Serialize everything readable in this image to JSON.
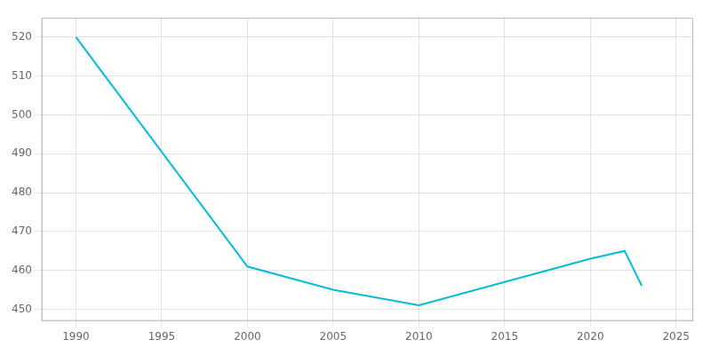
{
  "chart_data": {
    "type": "line",
    "x": [
      1990,
      2000,
      2005,
      2010,
      2020,
      2022,
      2023
    ],
    "values": [
      520,
      461,
      455,
      451,
      463,
      465,
      456
    ],
    "color": "#00bcd4",
    "xlim": [
      1988,
      2026
    ],
    "ylim": [
      447,
      525
    ],
    "xticks": [
      1990,
      1995,
      2000,
      2005,
      2010,
      2015,
      2020,
      2025
    ],
    "yticks": [
      450,
      460,
      470,
      480,
      490,
      500,
      510,
      520
    ],
    "grid": true
  }
}
